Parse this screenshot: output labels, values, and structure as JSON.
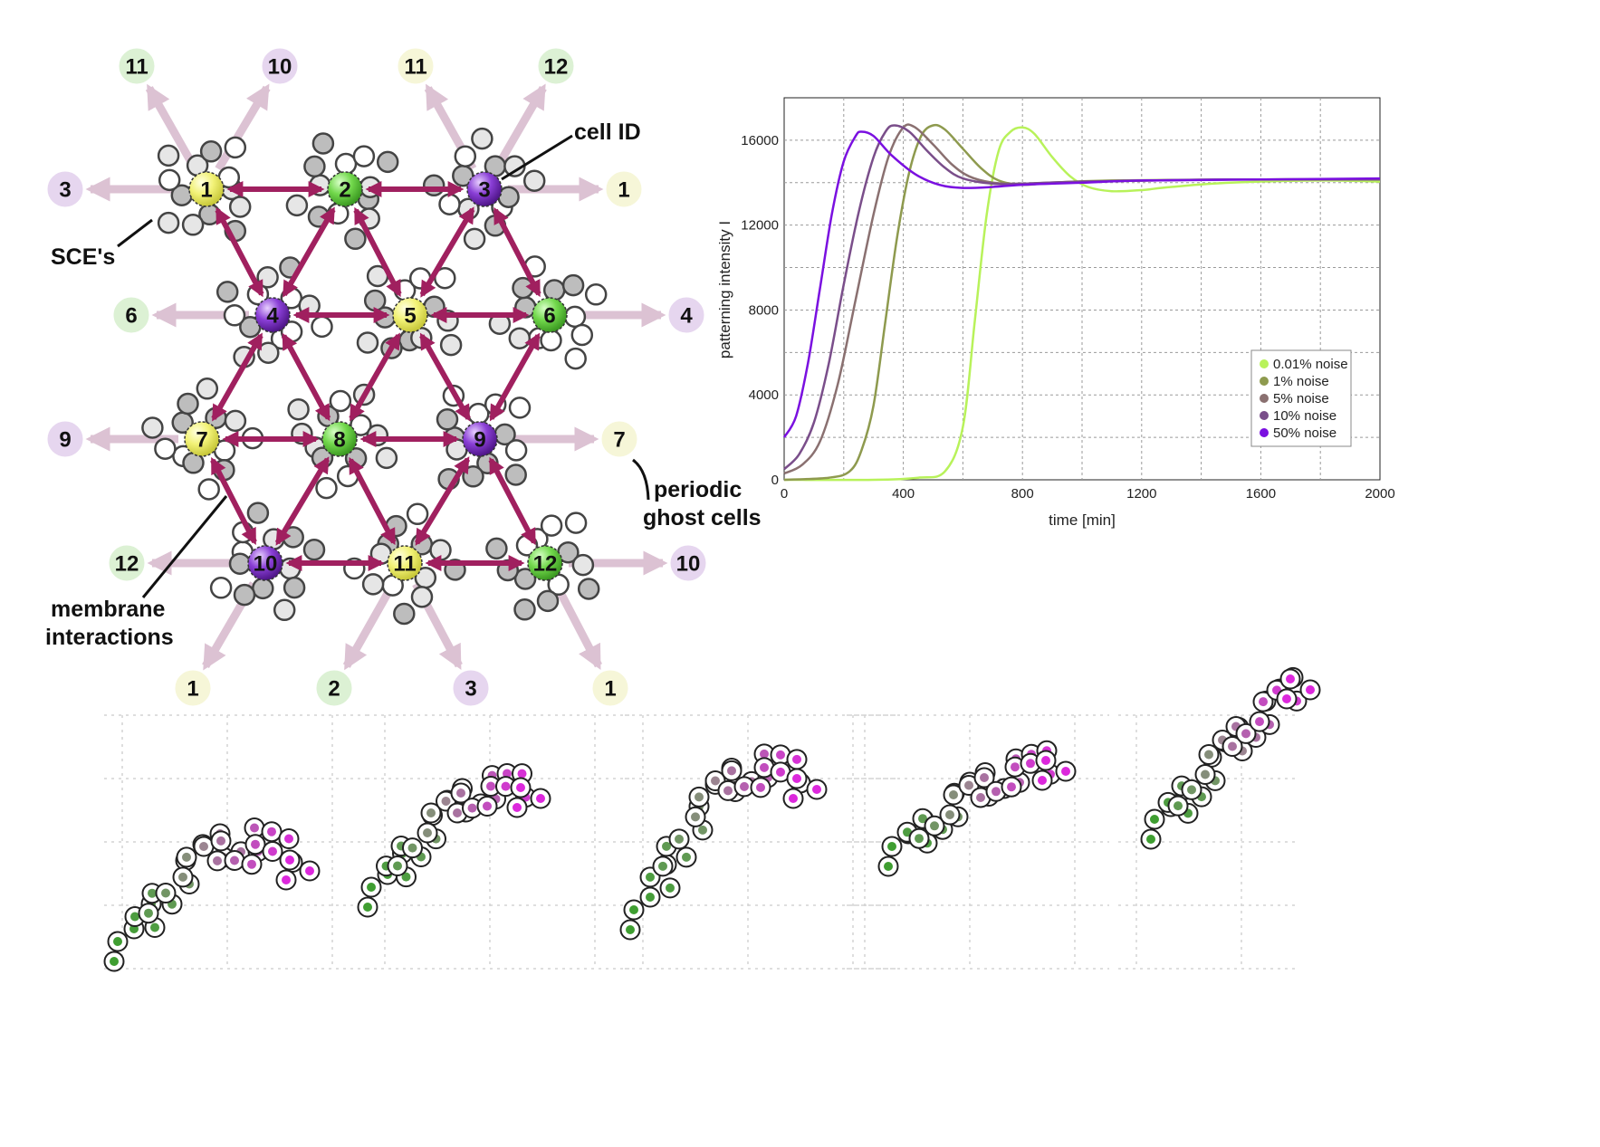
{
  "colors": {
    "yellow": "#f2f277",
    "green": "#72d84c",
    "purple": "#8a3fd6",
    "ghost_yellow": "#f6f6d8",
    "ghost_green": "#dcf1d4",
    "ghost_purple": "#e6d6ef",
    "interaction_arrow": "#a0205f",
    "ghost_arrow": "#dcc2d3"
  },
  "network": {
    "cells": [
      {
        "id": "1",
        "kind": "yellow"
      },
      {
        "id": "2",
        "kind": "green"
      },
      {
        "id": "3",
        "kind": "purple"
      },
      {
        "id": "4",
        "kind": "purple"
      },
      {
        "id": "5",
        "kind": "yellow"
      },
      {
        "id": "6",
        "kind": "green"
      },
      {
        "id": "7",
        "kind": "yellow"
      },
      {
        "id": "8",
        "kind": "green"
      },
      {
        "id": "9",
        "kind": "purple"
      },
      {
        "id": "10",
        "kind": "purple"
      },
      {
        "id": "11",
        "kind": "yellow"
      },
      {
        "id": "12",
        "kind": "green"
      }
    ],
    "ghost_cells": [
      {
        "id": "11",
        "kind": "green"
      },
      {
        "id": "10",
        "kind": "purple"
      },
      {
        "id": "11",
        "kind": "yellow"
      },
      {
        "id": "12",
        "kind": "green"
      },
      {
        "id": "3",
        "kind": "purple"
      },
      {
        "id": "1",
        "kind": "yellow"
      },
      {
        "id": "6",
        "kind": "green"
      },
      {
        "id": "4",
        "kind": "purple"
      },
      {
        "id": "9",
        "kind": "purple"
      },
      {
        "id": "7",
        "kind": "yellow"
      },
      {
        "id": "12",
        "kind": "green"
      },
      {
        "id": "10",
        "kind": "purple"
      },
      {
        "id": "1",
        "kind": "yellow"
      },
      {
        "id": "2",
        "kind": "green"
      },
      {
        "id": "3",
        "kind": "purple"
      },
      {
        "id": "1",
        "kind": "yellow"
      }
    ],
    "labels": {
      "cell_id": "cell ID",
      "sces": "SCE's",
      "periodic_line1": "periodic",
      "periodic_line2": "ghost cells",
      "membrane_line1": "membrane",
      "membrane_line2": "interactions"
    }
  },
  "chart_data": {
    "type": "line",
    "xlabel": "time [min]",
    "ylabel": "patterning intensity  I",
    "xlim": [
      0,
      2000
    ],
    "ylim": [
      0,
      18000
    ],
    "xticks": [
      0,
      400,
      800,
      1200,
      1600,
      2000
    ],
    "yticks": [
      0,
      4000,
      8000,
      12000,
      16000
    ],
    "grid": true,
    "legend_position": "bottom-right",
    "series": [
      {
        "name": "0.01% noise",
        "color": "#b8f25a",
        "points": [
          [
            0,
            0
          ],
          [
            300,
            0
          ],
          [
            450,
            100
          ],
          [
            540,
            400
          ],
          [
            600,
            2500
          ],
          [
            640,
            7500
          ],
          [
            680,
            12500
          ],
          [
            720,
            15500
          ],
          [
            760,
            16400
          ],
          [
            800,
            16600
          ],
          [
            840,
            16300
          ],
          [
            900,
            15200
          ],
          [
            960,
            14300
          ],
          [
            1020,
            13800
          ],
          [
            1100,
            13600
          ],
          [
            1200,
            13650
          ],
          [
            1300,
            13800
          ],
          [
            1500,
            14000
          ],
          [
            1800,
            14100
          ],
          [
            2000,
            14050
          ]
        ]
      },
      {
        "name": "1% noise",
        "color": "#8e9a4e",
        "points": [
          [
            0,
            0
          ],
          [
            150,
            100
          ],
          [
            220,
            400
          ],
          [
            260,
            1400
          ],
          [
            300,
            3500
          ],
          [
            340,
            7500
          ],
          [
            380,
            11500
          ],
          [
            420,
            14500
          ],
          [
            460,
            16200
          ],
          [
            500,
            16700
          ],
          [
            540,
            16500
          ],
          [
            600,
            15600
          ],
          [
            660,
            14700
          ],
          [
            720,
            14100
          ],
          [
            800,
            13900
          ],
          [
            900,
            14000
          ],
          [
            1100,
            14100
          ],
          [
            1500,
            14150
          ],
          [
            2000,
            14150
          ]
        ]
      },
      {
        "name": "5% noise",
        "color": "#8a7070",
        "points": [
          [
            0,
            300
          ],
          [
            60,
            700
          ],
          [
            120,
            1800
          ],
          [
            180,
            4500
          ],
          [
            240,
            8500
          ],
          [
            300,
            12500
          ],
          [
            350,
            15200
          ],
          [
            400,
            16600
          ],
          [
            440,
            16600
          ],
          [
            500,
            15800
          ],
          [
            560,
            14900
          ],
          [
            620,
            14300
          ],
          [
            700,
            14000
          ],
          [
            800,
            13950
          ],
          [
            1000,
            14050
          ],
          [
            1500,
            14150
          ],
          [
            2000,
            14150
          ]
        ]
      },
      {
        "name": "10% noise",
        "color": "#7a4e8a",
        "points": [
          [
            0,
            500
          ],
          [
            50,
            1200
          ],
          [
            100,
            2700
          ],
          [
            150,
            5500
          ],
          [
            200,
            9200
          ],
          [
            250,
            12600
          ],
          [
            300,
            15200
          ],
          [
            340,
            16400
          ],
          [
            370,
            16700
          ],
          [
            420,
            16400
          ],
          [
            480,
            15500
          ],
          [
            540,
            14700
          ],
          [
            600,
            14200
          ],
          [
            700,
            13950
          ],
          [
            800,
            13950
          ],
          [
            1000,
            14050
          ],
          [
            1500,
            14150
          ],
          [
            2000,
            14150
          ]
        ]
      },
      {
        "name": "50% noise",
        "color": "#7a10e0",
        "points": [
          [
            0,
            2000
          ],
          [
            40,
            3000
          ],
          [
            80,
            5500
          ],
          [
            120,
            9000
          ],
          [
            160,
            12500
          ],
          [
            200,
            15000
          ],
          [
            240,
            16200
          ],
          [
            260,
            16400
          ],
          [
            300,
            16200
          ],
          [
            360,
            15300
          ],
          [
            440,
            14400
          ],
          [
            520,
            13900
          ],
          [
            600,
            13750
          ],
          [
            700,
            13800
          ],
          [
            800,
            13900
          ],
          [
            1000,
            14000
          ],
          [
            1200,
            14100
          ],
          [
            1600,
            14150
          ],
          [
            2000,
            14200
          ]
        ]
      }
    ]
  },
  "snapshots": [
    {
      "panel": 1
    },
    {
      "panel": 2
    },
    {
      "panel": 3
    },
    {
      "panel": 4
    },
    {
      "panel": 5
    }
  ]
}
